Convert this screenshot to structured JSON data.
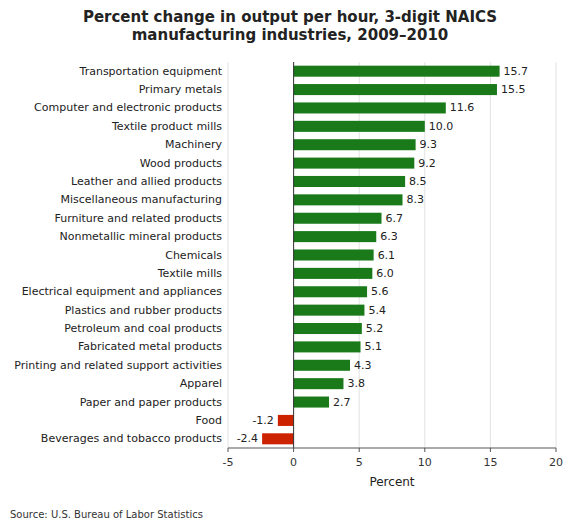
{
  "chart_data": {
    "type": "bar",
    "orientation": "horizontal",
    "title": "Percent change in output per hour, 3-digit NAICS\nmanufacturing industries, 2009–2010",
    "categories": [
      "Transportation equipment",
      "Primary metals",
      "Computer and electronic products",
      "Textile product mills",
      "Machinery",
      "Wood products",
      "Leather and allied products",
      "Miscellaneous manufacturing",
      "Furniture and related products",
      "Nonmetallic mineral products",
      "Chemicals",
      "Textile mills",
      "Electrical equipment and appliances",
      "Plastics and rubber products",
      "Petroleum and coal products",
      "Fabricated metal  products",
      "Printing and related support activities",
      "Apparel",
      "Paper and paper products",
      "Food",
      "Beverages and tobacco products"
    ],
    "values": [
      15.7,
      15.5,
      11.6,
      10.0,
      9.3,
      9.2,
      8.5,
      8.3,
      6.7,
      6.3,
      6.1,
      6.0,
      5.6,
      5.4,
      5.2,
      5.1,
      4.3,
      3.8,
      2.7,
      -1.2,
      -2.4
    ],
    "value_labels": [
      "15.7",
      "15.5",
      "11.6",
      "10.0",
      "9.3",
      "9.2",
      "8.5",
      "8.3",
      "6.7",
      "6.3",
      "6.1",
      "6.0",
      "5.6",
      "5.4",
      "5.2",
      "5.1",
      "4.3",
      "3.8",
      "2.7",
      "-1.2",
      "-2.4"
    ],
    "colors": [
      "#1a7a1a",
      "#1a7a1a",
      "#1a7a1a",
      "#1a7a1a",
      "#1a7a1a",
      "#1a7a1a",
      "#1a7a1a",
      "#1a7a1a",
      "#1a7a1a",
      "#1a7a1a",
      "#1a7a1a",
      "#1a7a1a",
      "#1a7a1a",
      "#1a7a1a",
      "#1a7a1a",
      "#1a7a1a",
      "#1a7a1a",
      "#1a7a1a",
      "#1a7a1a",
      "#cc2200",
      "#cc2200"
    ],
    "data_labels": true,
    "xlabel": "Percent",
    "xlim": [
      -5,
      20
    ],
    "xticks": [
      -5,
      0,
      5,
      10,
      15,
      20
    ],
    "grid": true,
    "annotations": [
      "Source: U.S. Bureau of Labor Statistics"
    ]
  }
}
